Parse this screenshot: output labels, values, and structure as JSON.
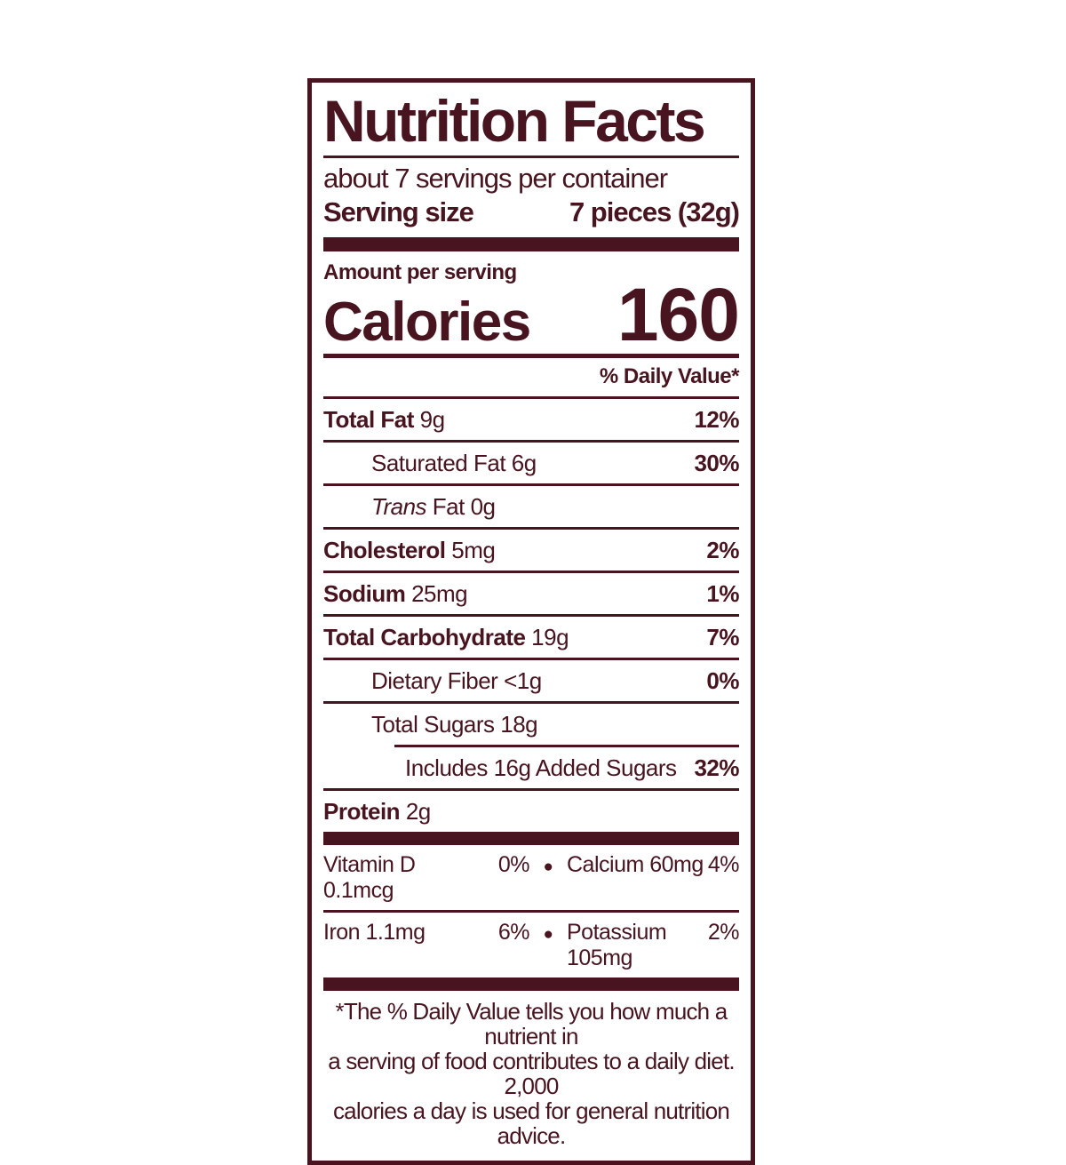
{
  "label": {
    "accent_color": "#47141f",
    "title": "Nutrition Facts",
    "servings_per_container": "about 7 servings per container",
    "serving_size_label": "Serving size",
    "serving_size_value": "7 pieces (32g)",
    "amount_per_serving": "Amount per serving",
    "calories_label": "Calories",
    "calories_value": "160",
    "daily_value_header": "% Daily Value*",
    "bullet": "●",
    "rows": [
      {
        "name": "Total Fat",
        "amount": "9g",
        "dv": "12%"
      },
      {
        "name": "Saturated Fat",
        "amount": "6g",
        "dv": "30%"
      },
      {
        "name_italic": "Trans",
        "name": "Fat",
        "amount": "0g",
        "dv": ""
      },
      {
        "name": "Cholesterol",
        "amount": "5mg",
        "dv": "2%"
      },
      {
        "name": "Sodium",
        "amount": "25mg",
        "dv": "1%"
      },
      {
        "name": "Total Carbohydrate",
        "amount": "19g",
        "dv": "7%"
      },
      {
        "name": "Dietary Fiber",
        "amount": "<1g",
        "dv": "0%"
      },
      {
        "name": "Total Sugars",
        "amount": "18g",
        "dv": ""
      },
      {
        "name": "Includes 16g Added Sugars",
        "amount": "",
        "dv": "32%"
      },
      {
        "name": "Protein",
        "amount": "2g",
        "dv": ""
      }
    ],
    "micronutrients": [
      {
        "left_name": "Vitamin D 0.1mcg",
        "left_dv": "0%",
        "right_name": "Calcium 60mg",
        "right_dv": "4%"
      },
      {
        "left_name": "Iron 1.1mg",
        "left_dv": "6%",
        "right_name": "Potassium 105mg",
        "right_dv": "2%"
      }
    ],
    "footnote_lines": [
      "*The % Daily Value tells you how much a nutrient in",
      "a serving of food contributes to a daily diet. 2,000",
      "calories a day is used for general nutrition advice."
    ]
  }
}
